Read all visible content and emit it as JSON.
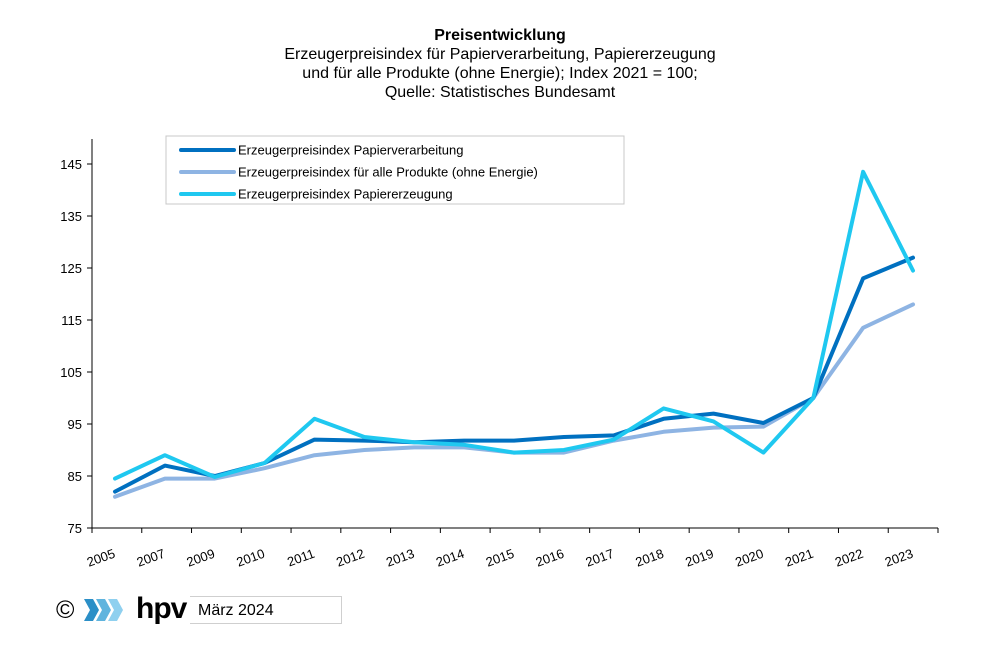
{
  "footer": {
    "copyright_symbol": "©",
    "logo_icon": "hpv-chevron-logo-icon",
    "brand": "hpv",
    "date": "März 2024"
  },
  "chart_data": {
    "type": "line",
    "title": "Preisentwicklung",
    "subtitle_lines": [
      "Erzeugerpreisindex für Papierverarbeitung, Papiererzeugung",
      "und für alle Produkte (ohne Energie); Index 2021 = 100;",
      "Quelle: Statistisches Bundesamt"
    ],
    "xlabel": "",
    "ylabel": "",
    "categories": [
      "2005",
      "2007",
      "2009",
      "2010",
      "2011",
      "2012",
      "2013",
      "2014",
      "2015",
      "2016",
      "2017",
      "2018",
      "2019",
      "2020",
      "2021",
      "2022",
      "2023"
    ],
    "ylim": [
      75,
      150
    ],
    "yticks": [
      75,
      85,
      95,
      105,
      115,
      125,
      135,
      145
    ],
    "grid": false,
    "legend_position": "top-left",
    "series": [
      {
        "name": "Erzeugerpreisindex Papierverarbeitung",
        "color": "#0070c0",
        "values": [
          82,
          87,
          85,
          87.5,
          92,
          91.8,
          91.5,
          91.8,
          91.8,
          92.5,
          92.8,
          96,
          97,
          95.2,
          100,
          123,
          127
        ]
      },
      {
        "name": "Erzeugerpreisindex für alle Produkte (ohne Energie)",
        "color": "#8eb4e3",
        "values": [
          81,
          84.5,
          84.5,
          86.5,
          89,
          90,
          90.5,
          90.5,
          89.5,
          89.5,
          91.8,
          93.5,
          94.3,
          94.5,
          100,
          113.5,
          118
        ]
      },
      {
        "name": "Erzeugerpreisindex Papiererzeugung",
        "color": "#1fc8f0",
        "values": [
          84.5,
          89,
          84.8,
          87.5,
          96,
          92.5,
          91.5,
          91,
          89.5,
          90,
          92,
          98,
          95.5,
          89.5,
          100,
          143.5,
          124.5
        ]
      }
    ]
  }
}
